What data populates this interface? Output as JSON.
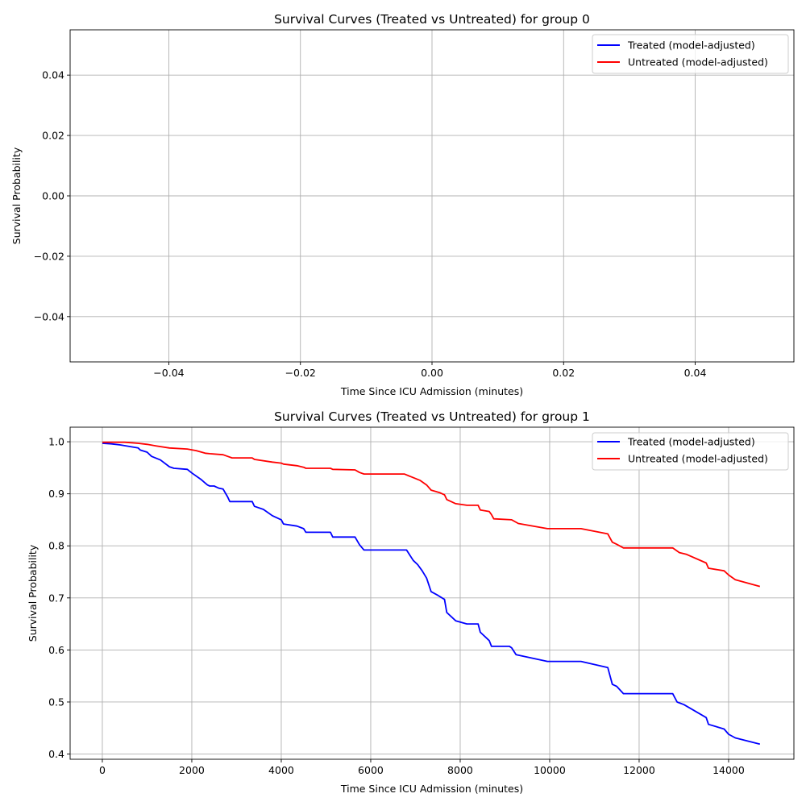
{
  "chart_data": [
    {
      "type": "line",
      "title": "Survival Curves (Treated vs Untreated) for group 0",
      "xlabel": "Time Since ICU Admission (minutes)",
      "ylabel": "Survival Probability",
      "xlim": [
        -0.055,
        0.055
      ],
      "ylim": [
        -0.055,
        0.055
      ],
      "xticks": [
        -0.04,
        -0.02,
        0.0,
        0.02,
        0.04
      ],
      "xtick_labels": [
        "−0.04",
        "−0.02",
        "0.00",
        "0.02",
        "0.04"
      ],
      "yticks": [
        -0.04,
        -0.02,
        0.0,
        0.02,
        0.04
      ],
      "ytick_labels": [
        "−0.04",
        "−0.02",
        "0.00",
        "0.02",
        "0.04"
      ],
      "grid": true,
      "legend_position": "top-right",
      "series": [
        {
          "name": "Treated (model-adjusted)",
          "color": "#0000ff",
          "x": [],
          "y": []
        },
        {
          "name": "Untreated (model-adjusted)",
          "color": "#ff0000",
          "x": [],
          "y": []
        }
      ]
    },
    {
      "type": "line",
      "title": "Survival Curves (Treated vs Untreated) for group 1",
      "xlabel": "Time Since ICU Admission (minutes)",
      "ylabel": "Survival Probability",
      "xlim": [
        -720,
        15460
      ],
      "ylim": [
        0.39,
        1.028
      ],
      "xticks": [
        0,
        2000,
        4000,
        6000,
        8000,
        10000,
        12000,
        14000
      ],
      "xtick_labels": [
        "0",
        "2000",
        "4000",
        "6000",
        "8000",
        "10000",
        "12000",
        "14000"
      ],
      "yticks": [
        0.4,
        0.5,
        0.6,
        0.7,
        0.8,
        0.9,
        1.0
      ],
      "ytick_labels": [
        "0.4",
        "0.5",
        "0.6",
        "0.7",
        "0.8",
        "0.9",
        "1.0"
      ],
      "grid": true,
      "legend_position": "top-right",
      "series": [
        {
          "name": "Treated (model-adjusted)",
          "color": "#0000ff",
          "x": [
            0,
            200,
            400,
            800,
            850,
            1000,
            1100,
            1300,
            1500,
            1600,
            1900,
            2000,
            2200,
            2350,
            2400,
            2500,
            2550,
            2600,
            2700,
            2800,
            2850,
            2950,
            3350,
            3400,
            3600,
            3800,
            4000,
            4050,
            4350,
            4500,
            4550,
            5100,
            5150,
            5650,
            5750,
            5850,
            6800,
            6950,
            7050,
            7150,
            7250,
            7350,
            7500,
            7650,
            7700,
            7900,
            8150,
            8400,
            8450,
            8650,
            8700,
            9100,
            9150,
            9250,
            9950,
            10700,
            11300,
            11400,
            11500,
            11650,
            12750,
            12850,
            13000,
            13500,
            13550,
            13900,
            14000,
            14150,
            14700
          ],
          "y": [
            0.997,
            0.996,
            0.994,
            0.988,
            0.984,
            0.98,
            0.972,
            0.965,
            0.952,
            0.949,
            0.947,
            0.94,
            0.928,
            0.917,
            0.915,
            0.915,
            0.913,
            0.911,
            0.909,
            0.894,
            0.885,
            0.885,
            0.885,
            0.876,
            0.87,
            0.858,
            0.85,
            0.842,
            0.838,
            0.833,
            0.826,
            0.826,
            0.817,
            0.817,
            0.802,
            0.792,
            0.792,
            0.772,
            0.764,
            0.752,
            0.738,
            0.712,
            0.705,
            0.697,
            0.672,
            0.656,
            0.65,
            0.65,
            0.634,
            0.618,
            0.607,
            0.607,
            0.604,
            0.591,
            0.578,
            0.578,
            0.566,
            0.534,
            0.53,
            0.516,
            0.516,
            0.5,
            0.495,
            0.47,
            0.457,
            0.448,
            0.438,
            0.431,
            0.419
          ]
        },
        {
          "name": "Untreated (model-adjusted)",
          "color": "#ff0000",
          "x": [
            0,
            500,
            800,
            1000,
            1200,
            1500,
            1900,
            2100,
            2300,
            2400,
            2700,
            2800,
            2900,
            3350,
            3400,
            3800,
            4000,
            4050,
            4350,
            4500,
            4550,
            5100,
            5150,
            5650,
            5750,
            5850,
            6750,
            6950,
            7100,
            7250,
            7350,
            7550,
            7650,
            7700,
            7900,
            8150,
            8400,
            8450,
            8650,
            8700,
            8750,
            9150,
            9300,
            9950,
            10700,
            11300,
            11400,
            11500,
            11650,
            12750,
            12900,
            13050,
            13500,
            13550,
            13900,
            14000,
            14150,
            14700
          ],
          "y": [
            0.999,
            0.999,
            0.997,
            0.995,
            0.992,
            0.988,
            0.986,
            0.983,
            0.978,
            0.977,
            0.975,
            0.972,
            0.969,
            0.969,
            0.966,
            0.961,
            0.959,
            0.957,
            0.954,
            0.951,
            0.949,
            0.949,
            0.947,
            0.946,
            0.941,
            0.938,
            0.938,
            0.931,
            0.926,
            0.917,
            0.907,
            0.902,
            0.898,
            0.889,
            0.881,
            0.878,
            0.878,
            0.869,
            0.866,
            0.86,
            0.852,
            0.85,
            0.843,
            0.833,
            0.833,
            0.823,
            0.807,
            0.803,
            0.796,
            0.796,
            0.787,
            0.784,
            0.767,
            0.757,
            0.752,
            0.744,
            0.735,
            0.722
          ]
        }
      ]
    }
  ]
}
